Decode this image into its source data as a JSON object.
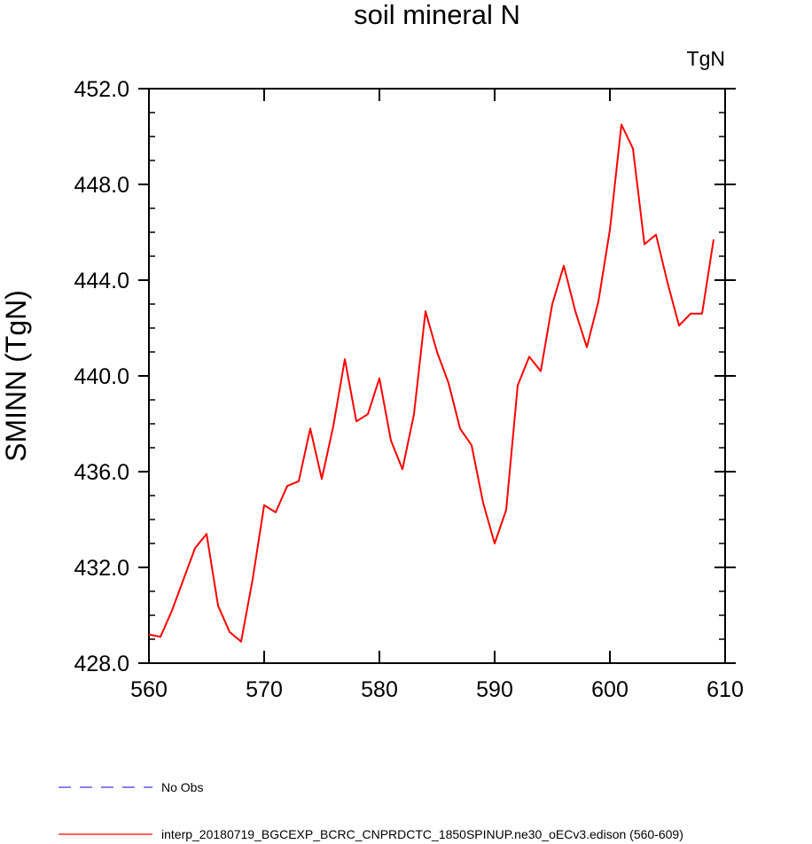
{
  "chart_data": {
    "type": "line",
    "title": "soil mineral N",
    "units_label": "TgN",
    "ylabel": "SMINN  (TgN)",
    "xlabel": "",
    "xlim": [
      560,
      610
    ],
    "ylim": [
      428,
      452
    ],
    "x_ticks": [
      560,
      570,
      580,
      590,
      600,
      610
    ],
    "x_tick_labels": [
      "560",
      "570",
      "580",
      "590",
      "600",
      "610"
    ],
    "y_ticks": [
      428,
      432,
      436,
      440,
      444,
      448,
      452
    ],
    "y_tick_labels": [
      "428.0",
      "432.0",
      "436.0",
      "440.0",
      "444.0",
      "448.0",
      "452.0"
    ],
    "grid": false,
    "series": [
      {
        "name": "interp_20180719_BGCEXP_BCRC_CNPRDCTC_1850SPINUP.ne30_oECv3.edison (560-609)",
        "color": "#ff0000",
        "style": "solid",
        "x": [
          560,
          561,
          562,
          563,
          564,
          565,
          566,
          567,
          568,
          569,
          570,
          571,
          572,
          573,
          574,
          575,
          576,
          577,
          578,
          579,
          580,
          581,
          582,
          583,
          584,
          585,
          586,
          587,
          588,
          589,
          590,
          591,
          592,
          593,
          594,
          595,
          596,
          597,
          598,
          599,
          600,
          601,
          602,
          603,
          604,
          605,
          606,
          607,
          608,
          609
        ],
        "values": [
          429.2,
          429.1,
          430.2,
          431.5,
          432.8,
          433.4,
          430.4,
          429.3,
          428.9,
          431.5,
          434.6,
          434.3,
          435.4,
          435.6,
          437.8,
          435.7,
          437.9,
          440.7,
          438.1,
          438.4,
          439.9,
          437.3,
          436.1,
          438.4,
          442.7,
          441.0,
          439.7,
          437.8,
          437.1,
          434.7,
          433.0,
          434.4,
          439.6,
          440.8,
          440.2,
          443.0,
          444.6,
          442.7,
          441.2,
          443.1,
          446.1,
          450.5,
          449.5,
          445.5,
          445.9,
          443.9,
          442.1,
          442.6,
          442.6,
          445.7
        ]
      },
      {
        "name": "No Obs",
        "color": "#3a3ad6",
        "style": "dashed",
        "x": [],
        "values": []
      }
    ],
    "legend_position": "bottom-left"
  }
}
